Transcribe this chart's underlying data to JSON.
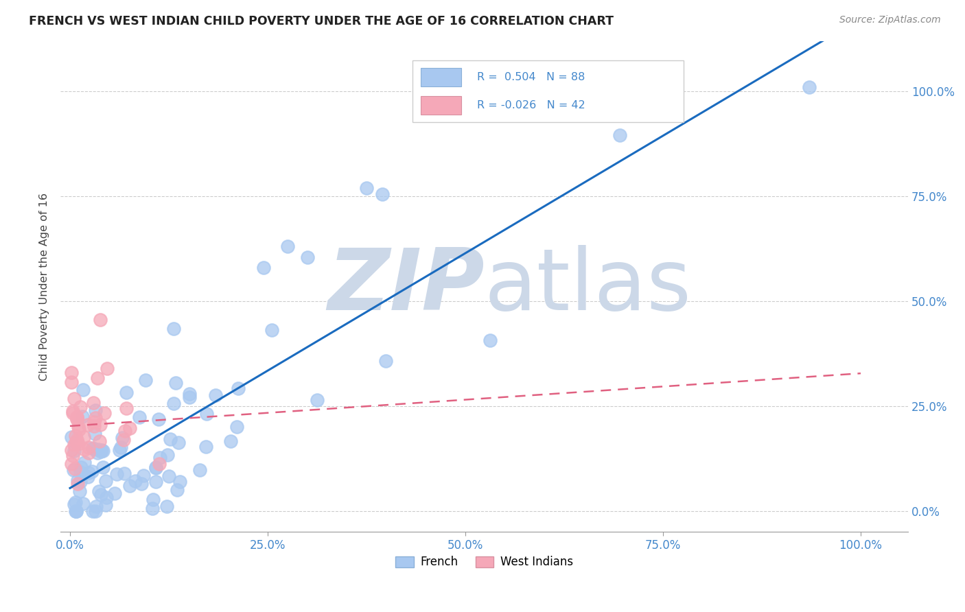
{
  "title": "FRENCH VS WEST INDIAN CHILD POVERTY UNDER THE AGE OF 16 CORRELATION CHART",
  "source": "Source: ZipAtlas.com",
  "ylabel": "Child Poverty Under the Age of 16",
  "french_R": 0.504,
  "french_N": 88,
  "west_indian_R": -0.026,
  "west_indian_N": 42,
  "french_color": "#a8c8f0",
  "west_indian_color": "#f5a8b8",
  "french_line_color": "#1a6bbf",
  "west_indian_line_color": "#e06080",
  "background_color": "#ffffff",
  "watermark_color": "#ccd8e8",
  "x_ticks": [
    0.0,
    0.25,
    0.5,
    0.75,
    1.0
  ],
  "x_tick_labels": [
    "0.0%",
    "25.0%",
    "50.0%",
    "75.0%",
    "100.0%"
  ],
  "y_ticks": [
    0.0,
    0.25,
    0.5,
    0.75,
    1.0
  ],
  "y_tick_labels": [
    "0.0%",
    "25.0%",
    "50.0%",
    "75.0%",
    "100.0%"
  ],
  "tick_color": "#4488cc",
  "grid_color": "#cccccc",
  "legend_box_color": "#eeeeee",
  "legend_border_color": "#cccccc"
}
